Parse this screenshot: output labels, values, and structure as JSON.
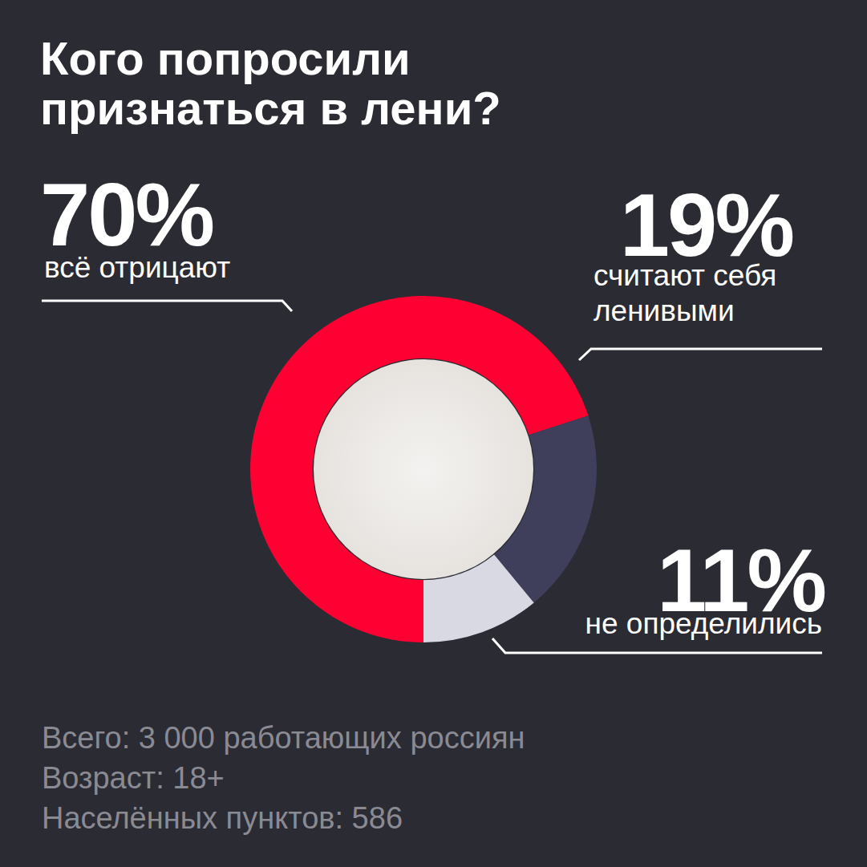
{
  "chart_data": {
    "type": "pie",
    "title": "Кого попросили признаться в лени?",
    "categories": [
      "всё отрицают",
      "считают себя ленивыми",
      "не определились"
    ],
    "values": [
      70,
      19,
      11
    ],
    "value_labels": [
      "70%",
      "19%",
      "11%"
    ],
    "colors": [
      "#ff0032",
      "#3f3f5c",
      "#d9d9e3"
    ],
    "data_labels": true,
    "notes": [
      "Всего: 3 000 работающих россиян",
      "Возраст: 18+",
      "Населённых пунктов: 586"
    ]
  }
}
